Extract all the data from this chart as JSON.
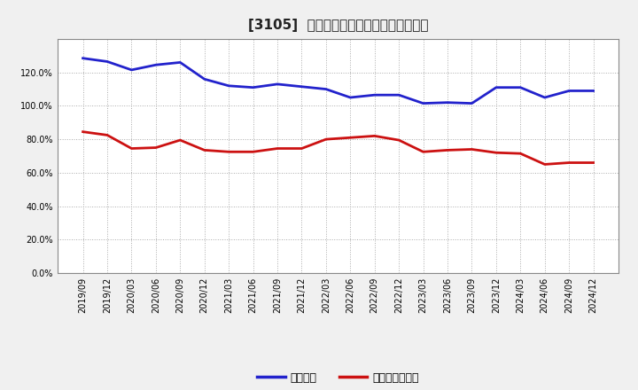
{
  "title": "[3105]  固定比率、固定長期適合率の推移",
  "x_labels": [
    "2019/09",
    "2019/12",
    "2020/03",
    "2020/06",
    "2020/09",
    "2020/12",
    "2021/03",
    "2021/06",
    "2021/09",
    "2021/12",
    "2022/03",
    "2022/06",
    "2022/09",
    "2022/12",
    "2023/03",
    "2023/06",
    "2023/09",
    "2023/12",
    "2024/03",
    "2024/06",
    "2024/09",
    "2024/12"
  ],
  "fixed_ratio": [
    128.5,
    126.5,
    121.5,
    124.5,
    126.0,
    116.0,
    112.0,
    111.0,
    113.0,
    111.5,
    110.0,
    105.0,
    106.5,
    106.5,
    101.5,
    102.0,
    101.5,
    111.0,
    111.0,
    105.0,
    109.0,
    109.0
  ],
  "fixed_long_ratio": [
    84.5,
    82.5,
    74.5,
    75.0,
    79.5,
    73.5,
    72.5,
    72.5,
    74.5,
    74.5,
    80.0,
    81.0,
    82.0,
    79.5,
    72.5,
    73.5,
    74.0,
    72.0,
    71.5,
    65.0,
    66.0,
    66.0
  ],
  "blue_color": "#2222cc",
  "red_color": "#cc1111",
  "bg_color": "#f0f0f0",
  "plot_bg_color": "#ffffff",
  "grid_color": "#aaaaaa",
  "ylim": [
    0,
    140
  ],
  "yticks": [
    0,
    20,
    40,
    60,
    80,
    100,
    120
  ],
  "legend_fixed": "固定比率",
  "legend_fixed_long": "固定長期適合率"
}
